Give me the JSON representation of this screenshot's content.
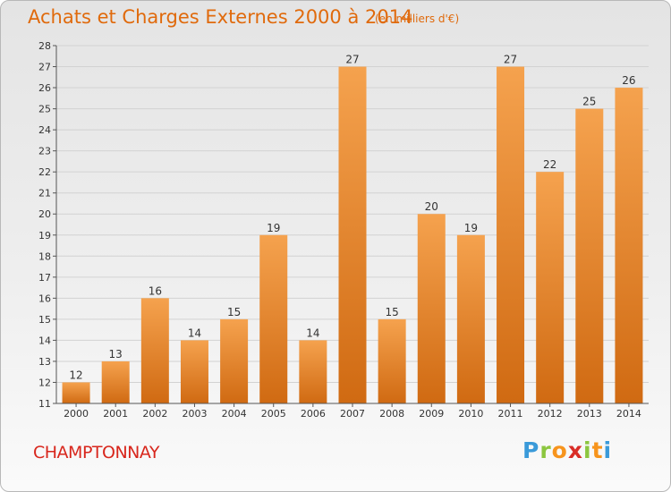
{
  "title": "Achats et Charges Externes 2000 à 2014",
  "subtitle": "(en milliers d'€)",
  "commune": "CHAMPTONNAY",
  "logo": {
    "letters": [
      "P",
      "r",
      "o",
      "x",
      "i",
      "t",
      "i"
    ],
    "colors": [
      "#3a9ad9",
      "#8cc63f",
      "#f7941d",
      "#d92d27",
      "#8cc63f",
      "#f7941d",
      "#3a9ad9"
    ]
  },
  "colors": {
    "bar": "#f28a26",
    "bar_dark": "#d06a12",
    "title": "#e06a0c",
    "commune": "#d8261c"
  },
  "chart_data": {
    "type": "bar",
    "categories": [
      "2000",
      "2001",
      "2002",
      "2003",
      "2004",
      "2005",
      "2006",
      "2007",
      "2008",
      "2009",
      "2010",
      "2011",
      "2012",
      "2013",
      "2014"
    ],
    "values": [
      12,
      13,
      16,
      14,
      15,
      19,
      14,
      27,
      15,
      20,
      19,
      27,
      22,
      25,
      26
    ],
    "title": "Achats et Charges Externes 2000 à 2014",
    "xlabel": "",
    "ylabel": "",
    "ylim": [
      11,
      28
    ],
    "yticks": [
      11,
      12,
      13,
      14,
      15,
      16,
      17,
      18,
      19,
      20,
      21,
      22,
      23,
      24,
      25,
      26,
      27,
      28
    ],
    "grid": true,
    "legend": "none"
  }
}
